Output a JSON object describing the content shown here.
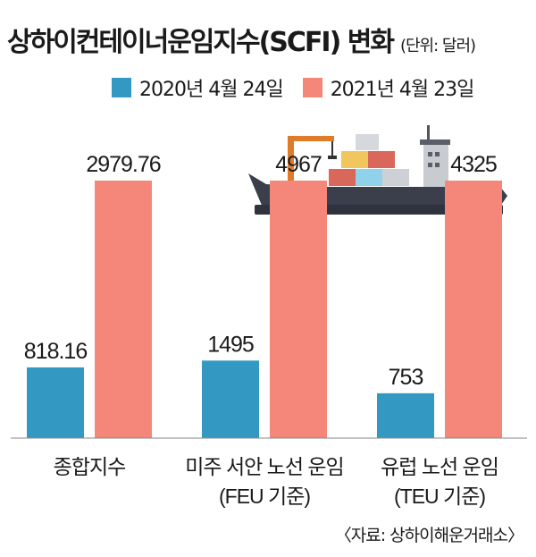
{
  "header": {
    "title": "상하이컨테이너운임지수(SCFI) 변화",
    "unit": "(단위: 달러)"
  },
  "footer": {
    "source": "〈자료: 상하이해운거래소〉"
  },
  "colors": {
    "series_2020": "#3399c3",
    "series_2021": "#f4867a",
    "ship_hull": "#3a3f4b"
  },
  "chart_data": {
    "type": "bar",
    "title": "상하이컨테이너운임지수(SCFI) 변화",
    "unit": "(단위: 달러)",
    "categories": [
      {
        "line1": "종합지수",
        "line2": ""
      },
      {
        "line1": "미주 서안 노선 운임",
        "line2": "(FEU 기준)"
      },
      {
        "line1": "유럽 노선 운임",
        "line2": "(TEU 기준)"
      }
    ],
    "series": [
      {
        "name": "2020년 4월 24일",
        "color": "#3399c3",
        "values": [
          818.16,
          1495,
          753
        ],
        "labels": [
          "818.16",
          "1495",
          "753"
        ]
      },
      {
        "name": "2021년 4월 23일",
        "color": "#f4867a",
        "values": [
          2979.76,
          4967,
          4325
        ],
        "labels": [
          "2979.76",
          "4967",
          "4325"
        ]
      }
    ],
    "legend": "top",
    "grid": false
  }
}
